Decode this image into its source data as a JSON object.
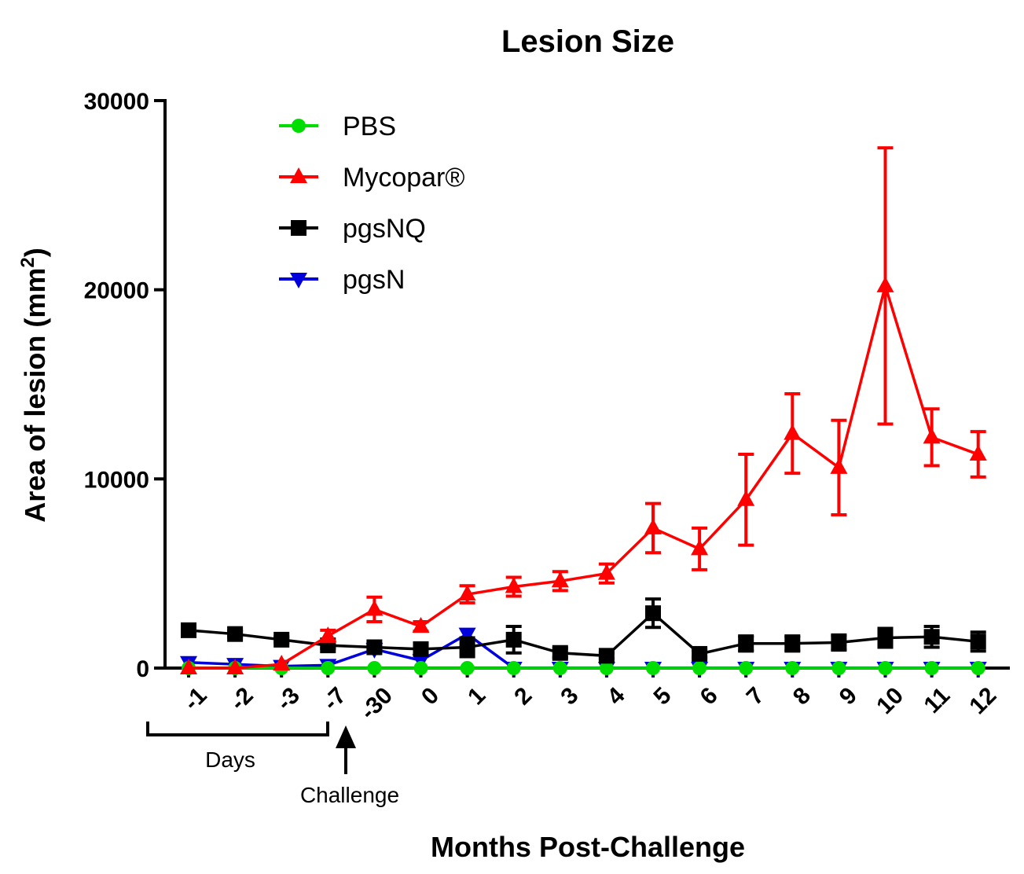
{
  "chart_data": {
    "type": "line",
    "title": "Lesion Size",
    "xlabel": "Months Post-Challenge",
    "ylabel": "Area of lesion (mm",
    "ylabel_sup": "2",
    "ylabel_end": ")",
    "ylim": [
      0,
      30000
    ],
    "yticks": [
      "0",
      "10000",
      "20000",
      "30000"
    ],
    "ytick_values": [
      0,
      10000,
      20000,
      30000
    ],
    "categories": [
      "-1",
      "-2",
      "-3",
      "-7",
      "-30",
      "0",
      "1",
      "2",
      "3",
      "4",
      "5",
      "6",
      "7",
      "8",
      "9",
      "10",
      "11",
      "12"
    ],
    "grid": false,
    "legend_position": "top-left",
    "series": [
      {
        "name": "PBS",
        "color": "#00dd00",
        "marker": "circle",
        "values": [
          0,
          0,
          0,
          0,
          0,
          0,
          0,
          0,
          0,
          0,
          0,
          0,
          0,
          0,
          0,
          0,
          0,
          0
        ],
        "errors": [
          0,
          0,
          0,
          0,
          0,
          0,
          0,
          0,
          0,
          0,
          0,
          0,
          0,
          0,
          0,
          0,
          0,
          0
        ]
      },
      {
        "name": "Mycopar®",
        "color": "#ff0000",
        "marker": "triangle-up",
        "values": [
          0,
          0,
          200,
          1700,
          3100,
          2200,
          3900,
          4300,
          4600,
          5000,
          7400,
          6300,
          8900,
          12400,
          10600,
          20200,
          12200,
          11300
        ],
        "errors": [
          0,
          0,
          0,
          300,
          650,
          250,
          450,
          500,
          500,
          500,
          1300,
          1100,
          2400,
          2100,
          2500,
          7300,
          1500,
          1200
        ]
      },
      {
        "name": "pgsNQ",
        "color": "#000000",
        "marker": "square",
        "values": [
          2000,
          1800,
          1500,
          1200,
          1100,
          1000,
          1100,
          1500,
          800,
          650,
          2900,
          750,
          1300,
          1300,
          1350,
          1600,
          1650,
          1400
        ],
        "errors": [
          150,
          150,
          150,
          150,
          150,
          150,
          500,
          700,
          250,
          150,
          750,
          200,
          400,
          400,
          400,
          500,
          550,
          500
        ]
      },
      {
        "name": "pgsN",
        "color": "#0000dd",
        "marker": "triangle-down",
        "values": [
          300,
          200,
          100,
          150,
          1000,
          400,
          1800,
          0,
          0,
          0,
          0,
          0,
          0,
          0,
          0,
          0,
          0,
          0
        ],
        "errors": [
          0,
          0,
          0,
          0,
          0,
          0,
          0,
          0,
          0,
          0,
          0,
          0,
          0,
          0,
          0,
          0,
          0,
          0
        ]
      }
    ],
    "annotations": {
      "days_label": "Days",
      "challenge_label": "Challenge"
    }
  }
}
